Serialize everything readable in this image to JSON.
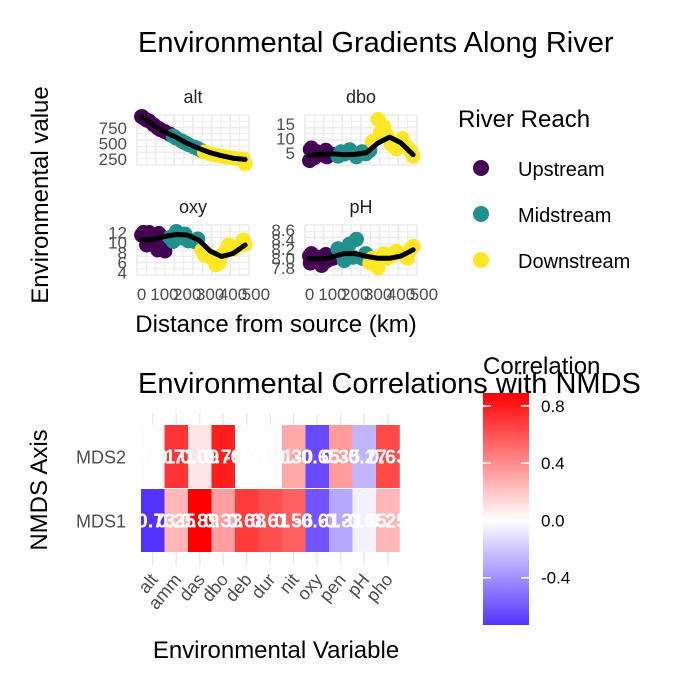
{
  "figure": {
    "top_title": "Environmental Gradients Along River",
    "bottom_title": "Environmental Correlations with NMDS"
  },
  "chart_data": [
    {
      "type": "scatter",
      "title": "Environmental Gradients Along River",
      "xlabel": "Distance from source (km)",
      "ylabel": "Environmental value",
      "x_tick_labels": [
        "0",
        "100",
        "200",
        "300",
        "400",
        "500"
      ],
      "legend": {
        "title": "River Reach",
        "placement": "right",
        "entries": [
          {
            "name": "Upstream",
            "color": "#440154"
          },
          {
            "name": "Midstream",
            "color": "#21908C"
          },
          {
            "name": "Downstream",
            "color": "#FDE725"
          }
        ]
      },
      "facets": [
        {
          "name": "alt",
          "xlim": [
            -20,
            470
          ],
          "ylim": [
            150,
            960
          ],
          "yticks": [
            250,
            500,
            750
          ],
          "points": {
            "Upstream": [
              [
                0,
                934
              ],
              [
                3,
                932
              ],
              [
                8,
                914
              ],
              [
                22,
                880
              ],
              [
                33,
                862
              ],
              [
                53,
                800
              ],
              [
                71,
                750
              ],
              [
                76,
                740
              ],
              [
                84,
                720
              ],
              [
                102,
                690
              ],
              [
                124,
                650
              ]
            ],
            "Midstream": [
              [
                138,
                620
              ],
              [
                152,
                585
              ],
              [
                175,
                540
              ],
              [
                190,
                510
              ],
              [
                205,
                480
              ],
              [
                230,
                440
              ],
              [
                246,
                415
              ],
              [
                264,
                380
              ]
            ],
            "Downstream": [
              [
                275,
                360
              ],
              [
                300,
                330
              ],
              [
                325,
                310
              ],
              [
                357,
                290
              ],
              [
                380,
                270
              ],
              [
                405,
                260
              ],
              [
                428,
                250
              ],
              [
                445,
                245
              ],
              [
                453,
                172
              ]
            ]
          },
          "trend": [
            [
              0,
              934
            ],
            [
              50,
              800
            ],
            [
              100,
              690
            ],
            [
              150,
              600
            ],
            [
              200,
              500
            ],
            [
              250,
              420
            ],
            [
              300,
              350
            ],
            [
              350,
              300
            ],
            [
              400,
              260
            ],
            [
              453,
              240
            ]
          ]
        },
        {
          "name": "dbo",
          "xlim": [
            -20,
            470
          ],
          "ylim": [
            1,
            18
          ],
          "yticks": [
            5,
            10,
            15
          ],
          "points": {
            "Upstream": [
              [
                0,
                2.5
              ],
              [
                3,
                6.3
              ],
              [
                8,
                6.8
              ],
              [
                22,
                3.5
              ],
              [
                33,
                5.5
              ],
              [
                53,
                4.5
              ],
              [
                71,
                6
              ],
              [
                76,
                3.8
              ],
              [
                84,
                5
              ],
              [
                102,
                4.6
              ]
            ],
            "Midstream": [
              [
                124,
                4
              ],
              [
                138,
                5.5
              ],
              [
                152,
                4.7
              ],
              [
                175,
                6.2
              ],
              [
                190,
                5
              ],
              [
                205,
                3.8
              ],
              [
                230,
                5.5
              ],
              [
                246,
                4.8
              ],
              [
                264,
                6
              ]
            ],
            "Downstream": [
              [
                275,
                9
              ],
              [
                300,
                16.5
              ],
              [
                310,
                12
              ],
              [
                325,
                14
              ],
              [
                340,
                11
              ],
              [
                357,
                8
              ],
              [
                380,
                6.5
              ],
              [
                405,
                10
              ],
              [
                428,
                7
              ],
              [
                445,
                5.5
              ],
              [
                453,
                4
              ]
            ]
          },
          "trend": [
            [
              0,
              4.3
            ],
            [
              50,
              4.6
            ],
            [
              100,
              4.8
            ],
            [
              150,
              4.5
            ],
            [
              200,
              4.6
            ],
            [
              250,
              5.2
            ],
            [
              300,
              8.5
            ],
            [
              350,
              10.5
            ],
            [
              400,
              8.5
            ],
            [
              453,
              4.5
            ]
          ]
        },
        {
          "name": "oxy",
          "xlim": [
            -20,
            470
          ],
          "ylim": [
            3.5,
            13.5
          ],
          "yticks": [
            4,
            6,
            8,
            10,
            12
          ],
          "points": {
            "Upstream": [
              [
                0,
                11.5
              ],
              [
                3,
                11.4
              ],
              [
                8,
                12
              ],
              [
                22,
                9.5
              ],
              [
                33,
                12
              ],
              [
                53,
                9.7
              ],
              [
                71,
                8.5
              ],
              [
                76,
                11.8
              ],
              [
                84,
                9
              ],
              [
                102,
                8.3
              ]
            ],
            "Midstream": [
              [
                124,
                11
              ],
              [
                138,
                10.2
              ],
              [
                152,
                12.2
              ],
              [
                175,
                10.9
              ],
              [
                190,
                11.7
              ],
              [
                205,
                10.3
              ],
              [
                230,
                10.2
              ],
              [
                246,
                10.7
              ]
            ],
            "Downstream": [
              [
                264,
                8.5
              ],
              [
                275,
                7.5
              ],
              [
                300,
                7
              ],
              [
                325,
                5.5
              ],
              [
                340,
                6
              ],
              [
                357,
                7.8
              ],
              [
                380,
                9.5
              ],
              [
                405,
                8.7
              ],
              [
                428,
                9.5
              ],
              [
                445,
                10.5
              ],
              [
                453,
                9.6
              ]
            ]
          },
          "trend": [
            [
              0,
              10.5
            ],
            [
              50,
              10.6
            ],
            [
              100,
              11.2
            ],
            [
              150,
              11.6
            ],
            [
              200,
              11.5
            ],
            [
              250,
              10.5
            ],
            [
              300,
              8.3
            ],
            [
              350,
              7.2
            ],
            [
              400,
              7.8
            ],
            [
              453,
              9.5
            ]
          ]
        },
        {
          "name": "pH",
          "xlim": [
            -20,
            470
          ],
          "ylim": [
            7.65,
            8.7
          ],
          "yticks": [
            7.8,
            8.0,
            8.2,
            8.4,
            8.6
          ],
          "y_tick_labels": [
            "7.8",
            "8.0",
            "8.2",
            "8.4",
            "8.6"
          ],
          "points": {
            "Upstream": [
              [
                0,
                8.05
              ],
              [
                3,
                7.9
              ],
              [
                8,
                8.1
              ],
              [
                22,
                7.95
              ],
              [
                33,
                8.02
              ],
              [
                53,
                7.85
              ],
              [
                71,
                8.08
              ],
              [
                76,
                7.95
              ],
              [
                84,
                8.03
              ],
              [
                102,
                8.0
              ]
            ],
            "Midstream": [
              [
                124,
                8.2
              ],
              [
                138,
                8.1
              ],
              [
                152,
                7.95
              ],
              [
                175,
                8.3
              ],
              [
                190,
                8.02
              ],
              [
                205,
                8.4
              ],
              [
                230,
                8.0
              ],
              [
                246,
                8.1
              ]
            ],
            "Downstream": [
              [
                264,
                7.9
              ],
              [
                275,
                8.0
              ],
              [
                300,
                7.8
              ],
              [
                325,
                8.1
              ],
              [
                340,
                8.0
              ],
              [
                357,
                8.05
              ],
              [
                380,
                8.15
              ],
              [
                405,
                8.1
              ],
              [
                428,
                8.0
              ],
              [
                445,
                8.2
              ],
              [
                453,
                8.25
              ]
            ]
          },
          "trend": [
            [
              0,
              8.0
            ],
            [
              50,
              7.98
            ],
            [
              100,
              8.03
            ],
            [
              150,
              8.1
            ],
            [
              200,
              8.1
            ],
            [
              250,
              8.04
            ],
            [
              300,
              8.0
            ],
            [
              350,
              8.0
            ],
            [
              400,
              8.05
            ],
            [
              453,
              8.18
            ]
          ]
        }
      ]
    },
    {
      "type": "heatmap",
      "title": "Environmental Correlations with NMDS",
      "xlabel": "Environmental Variable",
      "ylabel": "NMDS Axis",
      "x": [
        "alt",
        "amm",
        "das",
        "dbo",
        "deb",
        "dur",
        "nit",
        "oxy",
        "pen",
        "pH",
        "pho"
      ],
      "y": [
        "MDS1",
        "MDS2"
      ],
      "values": [
        [
          -0.73,
          0.25,
          0.89,
          0.33,
          0.68,
          0.61,
          0.56,
          -0.61,
          -0.31,
          -0.05,
          0.25
        ],
        [
          -0.01,
          0.71,
          0.09,
          0.79,
          -0.01,
          -0.01,
          0.3,
          -0.65,
          0.35,
          -0.27,
          0.63
        ]
      ],
      "cell_labels": [
        [
          "-0.73",
          "0.25",
          "0.89",
          "0.33",
          "0.68",
          "0.61",
          "0.56",
          "-0.61",
          "-0.31",
          "-0.05",
          "0.25"
        ],
        [
          "-0.01",
          "0.71",
          "0.09",
          "0.79",
          "-0.01",
          "-0.01",
          "0.30",
          "-0.65",
          "0.35",
          "-0.27",
          "0.63"
        ]
      ],
      "colorbar": {
        "title": "Correlation",
        "low": "#5533FF",
        "mid": "#FFFFFF",
        "high": "#FF0000",
        "limits": [
          -0.73,
          0.89
        ],
        "ticks": [
          -0.4,
          0.0,
          0.4,
          0.8
        ],
        "tick_labels": [
          "-0.4",
          "0.0",
          "0.4",
          "0.8"
        ]
      }
    }
  ]
}
